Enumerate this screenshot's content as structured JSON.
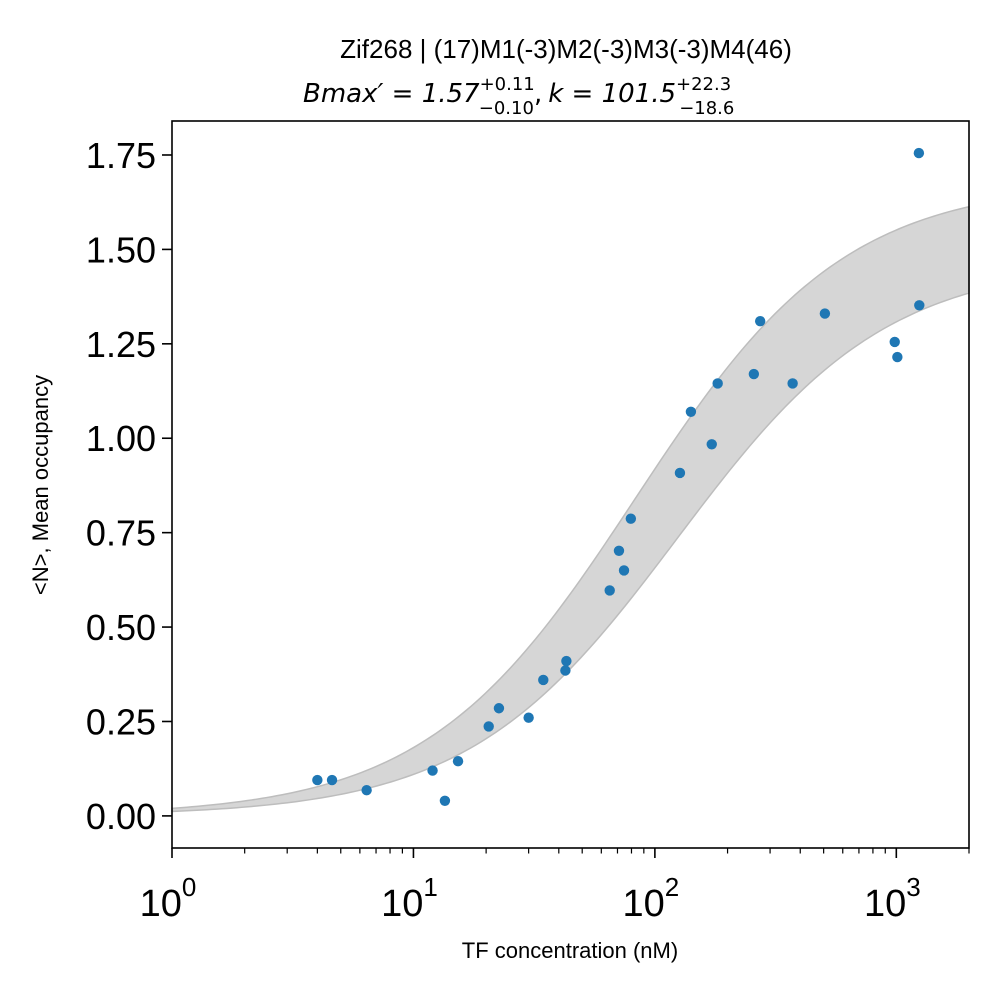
{
  "chart_data": {
    "type": "scatter",
    "title": "Zif268 | (17)M1(-3)M2(-3)M3(-3)M4(46)",
    "subtitle": {
      "bmax_label": "Bmax′ = 1.57",
      "bmax_sup": "+0.11",
      "bmax_sub": "−0.10",
      "separator": ",",
      "k_label": "k = 101.5",
      "k_sup": "+22.3",
      "k_sub": "−18.6"
    },
    "xlabel": "TF concentration (nM)",
    "ylabel": "<N>, Mean occupancy",
    "xscale": "log",
    "xlim": [
      1,
      2000
    ],
    "ylim": [
      -0.085,
      1.84
    ],
    "x_tick_labels": [
      {
        "base": "10",
        "exp": "0",
        "value": 1
      },
      {
        "base": "10",
        "exp": "1",
        "value": 10
      },
      {
        "base": "10",
        "exp": "2",
        "value": 100
      },
      {
        "base": "10",
        "exp": "3",
        "value": 1000
      }
    ],
    "y_ticks": [
      0.0,
      0.25,
      0.5,
      0.75,
      1.0,
      1.25,
      1.5,
      1.75
    ],
    "y_tick_labels": [
      "0.00",
      "0.25",
      "0.50",
      "0.75",
      "1.00",
      "1.25",
      "1.50",
      "1.75"
    ],
    "points": [
      {
        "x": 4.0,
        "y": 0.095
      },
      {
        "x": 4.6,
        "y": 0.095
      },
      {
        "x": 6.4,
        "y": 0.068
      },
      {
        "x": 12.0,
        "y": 0.12
      },
      {
        "x": 13.5,
        "y": 0.04
      },
      {
        "x": 15.3,
        "y": 0.145
      },
      {
        "x": 20.5,
        "y": 0.237
      },
      {
        "x": 22.6,
        "y": 0.285
      },
      {
        "x": 30.0,
        "y": 0.26
      },
      {
        "x": 34.5,
        "y": 0.36
      },
      {
        "x": 42.6,
        "y": 0.385
      },
      {
        "x": 43.0,
        "y": 0.41
      },
      {
        "x": 65.0,
        "y": 0.597
      },
      {
        "x": 71.0,
        "y": 0.702
      },
      {
        "x": 74.5,
        "y": 0.65
      },
      {
        "x": 79.5,
        "y": 0.787
      },
      {
        "x": 127.0,
        "y": 0.908
      },
      {
        "x": 141.0,
        "y": 1.07
      },
      {
        "x": 172.0,
        "y": 0.984
      },
      {
        "x": 182.0,
        "y": 1.145
      },
      {
        "x": 257.0,
        "y": 1.17
      },
      {
        "x": 273.0,
        "y": 1.31
      },
      {
        "x": 372.0,
        "y": 1.145
      },
      {
        "x": 506.0,
        "y": 1.33
      },
      {
        "x": 985.0,
        "y": 1.255
      },
      {
        "x": 1010.0,
        "y": 1.215
      },
      {
        "x": 1240.0,
        "y": 1.755
      },
      {
        "x": 1245.0,
        "y": 1.352
      }
    ],
    "fit_band": {
      "model": "Bmax*x/(k+x)",
      "upper": {
        "bmax": 1.68,
        "k": 82.9
      },
      "lower": {
        "bmax": 1.47,
        "k": 123.8
      },
      "x_range": [
        1,
        2000
      ]
    },
    "colors": {
      "points": "#1f77b4",
      "band_fill": "#d6d6d6",
      "band_edge": "#bdbdbd",
      "axes": "#000000"
    },
    "grid": false,
    "legend": "none"
  }
}
